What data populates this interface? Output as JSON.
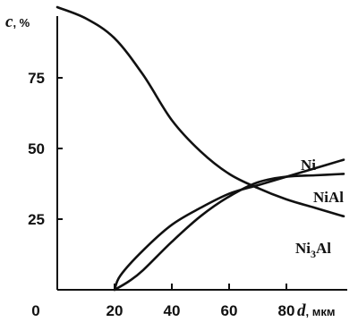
{
  "chart_data": {
    "type": "line",
    "title": "",
    "ylabel_var": "c",
    "ylabel_unit": ", %",
    "xlabel_var": "d",
    "xlabel_unit": ", мкм",
    "xlim": [
      0,
      100
    ],
    "ylim": [
      0,
      100
    ],
    "x_ticks": [
      0,
      20,
      40,
      60,
      80
    ],
    "y_ticks": [
      25,
      50,
      75
    ],
    "grid": false,
    "series": [
      {
        "name": "Ni3Al",
        "label_main": "Ni",
        "label_sub": "3",
        "label_tail": "Al",
        "x": [
          0,
          10,
          20,
          30,
          40,
          50,
          60,
          70,
          80,
          90,
          95,
          100
        ],
        "y": [
          100,
          96,
          89,
          76,
          60,
          49,
          41,
          36,
          32,
          29,
          27.5,
          26
        ]
      },
      {
        "name": "NiAl",
        "label_main": "NiAl",
        "x": [
          20,
          25,
          30,
          40,
          50,
          60,
          70,
          80,
          90,
          100
        ],
        "y": [
          0,
          3,
          7,
          17,
          26,
          33,
          38,
          40,
          40.5,
          41
        ]
      },
      {
        "name": "Ni",
        "label_main": "Ni",
        "x": [
          20,
          22,
          30,
          40,
          50,
          60,
          70,
          80,
          90,
          100
        ],
        "y": [
          0,
          5,
          14,
          23,
          29,
          34,
          37,
          40,
          43,
          46
        ]
      }
    ]
  }
}
